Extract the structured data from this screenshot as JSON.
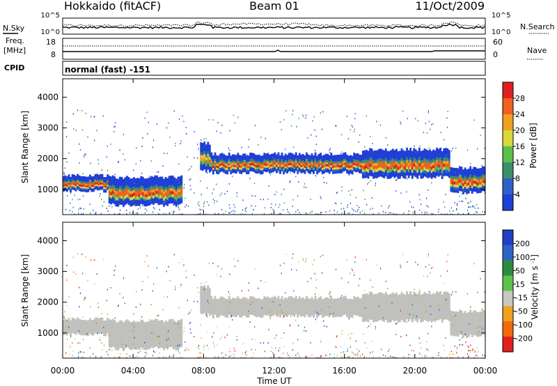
{
  "header": {
    "station": "Hokkaido (fitACF)",
    "beam": "Beam 01",
    "date": "11/Oct/2009"
  },
  "nsky_panel": {
    "left_label": "N.Sky",
    "right_label": "N.Search",
    "left_ticks": [
      "10^5",
      "10^0"
    ],
    "right_ticks": [
      "10^5",
      "10^0"
    ]
  },
  "freq_panel": {
    "left_label_line1": "Freq.",
    "left_label_line2": "[MHz]",
    "right_label": "Nave",
    "left_ticks": [
      "18",
      "8"
    ],
    "right_ticks": [
      "60",
      "0"
    ]
  },
  "cpid": {
    "label": "CPID",
    "value": "normal (fast) -151"
  },
  "colors": {
    "power_scale": [
      "#1f3fd6",
      "#2e62c8",
      "#3a8f6a",
      "#5cbf4a",
      "#d8d83a",
      "#f0a020",
      "#f06020",
      "#e02020"
    ],
    "velocity_scale": [
      "#2040c8",
      "#2e62c8",
      "#2e8a3e",
      "#5cc24a",
      "#c8c8c0",
      "#f0a020",
      "#f06a10",
      "#e02020"
    ],
    "ground_scatter": "#c0c0bc"
  },
  "chart_data": [
    {
      "type": "heatmap",
      "title": "",
      "xlabel": "",
      "ylabel": "Slant Range [km]",
      "ylim": [
        180,
        4600
      ],
      "yticks": [
        "1000",
        "2000",
        "3000",
        "4000"
      ],
      "colorbar": {
        "label": "Power [dB]",
        "ticks": [
          "4",
          "8",
          "12",
          "16",
          "20",
          "24",
          "28"
        ],
        "range": [
          0,
          30
        ]
      },
      "echo_bands": [
        {
          "start_ut": 0.0,
          "end_ut": 2.6,
          "lower_km": 950,
          "upper_km": 1450,
          "peak_db": 28
        },
        {
          "start_ut": 2.6,
          "end_ut": 6.8,
          "lower_km": 500,
          "upper_km": 1400,
          "peak_db": 26
        },
        {
          "start_ut": 7.8,
          "end_ut": 8.4,
          "lower_km": 1600,
          "upper_km": 2500,
          "peak_db": 22
        },
        {
          "start_ut": 8.4,
          "end_ut": 17.0,
          "lower_km": 1550,
          "upper_km": 2150,
          "peak_db": 27
        },
        {
          "start_ut": 17.0,
          "end_ut": 22.0,
          "lower_km": 1400,
          "upper_km": 2300,
          "peak_db": 26
        },
        {
          "start_ut": 22.0,
          "end_ut": 24.0,
          "lower_km": 900,
          "upper_km": 1700,
          "peak_db": 27
        }
      ]
    },
    {
      "type": "heatmap",
      "title": "",
      "xlabel": "Time UT",
      "ylabel": "Slant Range [km]",
      "ylim": [
        180,
        4600
      ],
      "yticks": [
        "1000",
        "2000",
        "3000",
        "4000"
      ],
      "xticks": [
        "00:00",
        "04:00",
        "08:00",
        "12:00",
        "16:00",
        "20:00",
        "00:00"
      ],
      "xlim": [
        0,
        24
      ],
      "colorbar": {
        "label": "Velocity [m s^-1]",
        "ticks": [
          "200",
          "100",
          "50",
          "15",
          "-15",
          "-50",
          "-100",
          "-200"
        ]
      },
      "ground_scatter_band": "between -15 and 15"
    }
  ]
}
